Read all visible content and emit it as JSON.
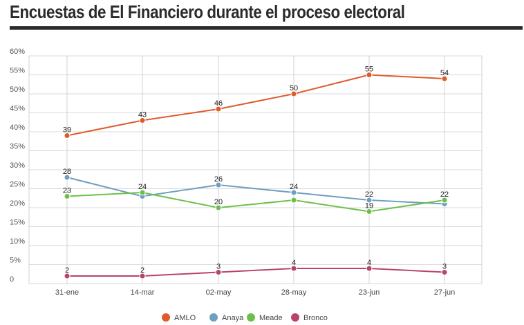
{
  "title": "Encuestas de El Financiero durante el proceso electoral",
  "chart_data": {
    "type": "line",
    "categories": [
      "31-ene",
      "14-mar",
      "02-may",
      "28-may",
      "23-jun",
      "27-jun"
    ],
    "ytick_labels": [
      "0",
      "5%",
      "10%",
      "15%",
      "20%",
      "25%",
      "30%",
      "35%",
      "40%",
      "45%",
      "50%",
      "55%",
      "60%"
    ],
    "ylim": [
      0,
      60
    ],
    "grid": true,
    "legend_position": "bottom",
    "series": [
      {
        "name": "AMLO",
        "color": "#e05a2b",
        "values": [
          39,
          43,
          46,
          50,
          55,
          54
        ],
        "labels": [
          "39",
          "43",
          "46",
          "50",
          "55",
          "54"
        ]
      },
      {
        "name": "Anaya",
        "color": "#6e9ec0",
        "values": [
          28,
          23,
          26,
          24,
          22,
          21
        ],
        "labels": [
          "28",
          "",
          "26",
          "24",
          "22",
          ""
        ]
      },
      {
        "name": "Meade",
        "color": "#6cc04a",
        "values": [
          23,
          24,
          20,
          22,
          19,
          22
        ],
        "labels": [
          "23",
          "24",
          "20",
          "",
          "19",
          "22"
        ]
      },
      {
        "name": "Bronco",
        "color": "#b8436e",
        "values": [
          2,
          2,
          3,
          4,
          4,
          3
        ],
        "labels": [
          "2",
          "2",
          "3",
          "4",
          "4",
          "3"
        ]
      }
    ]
  }
}
